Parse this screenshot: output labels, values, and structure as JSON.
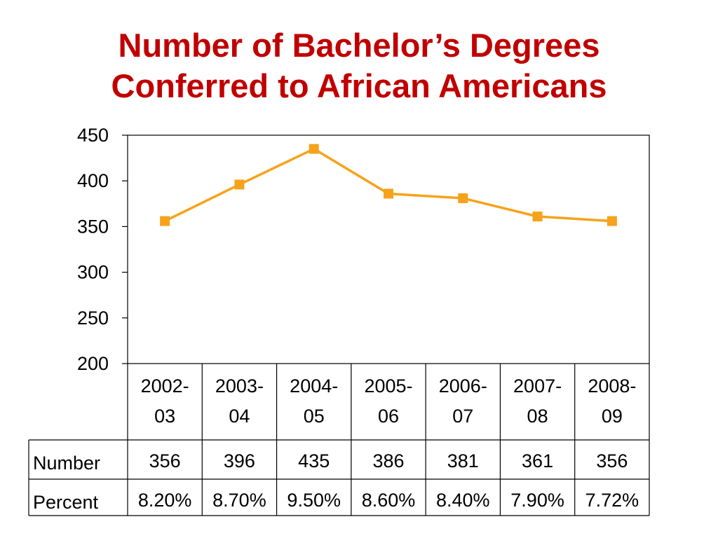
{
  "slide": {
    "title_line1": "Number of Bachelor’s Degrees",
    "title_line2": "Conferred to African Americans"
  },
  "colors": {
    "title": "#c00000",
    "series": "#f7a21b",
    "grid": "#000000"
  },
  "chart_data": {
    "type": "line",
    "title": "Number of Bachelor’s Degrees Conferred to African Americans",
    "categories": [
      [
        "2002-",
        "03"
      ],
      [
        "2003-",
        "04"
      ],
      [
        "2004-",
        "05"
      ],
      [
        "2005-",
        "06"
      ],
      [
        "2006-",
        "07"
      ],
      [
        "2007-",
        "08"
      ],
      [
        "2008-",
        "09"
      ]
    ],
    "series": [
      {
        "values": [
          356,
          396,
          435,
          386,
          381,
          361,
          356
        ],
        "marker": "square"
      }
    ],
    "yticks": [
      200,
      250,
      300,
      350,
      400,
      450
    ],
    "ylim": [
      200,
      450
    ],
    "grid": false,
    "table": {
      "rows": [
        {
          "label": "Number",
          "values": [
            "356",
            "396",
            "435",
            "386",
            "381",
            "361",
            "356"
          ]
        },
        {
          "label": "Percent",
          "values": [
            "8.20%",
            "8.70%",
            "9.50%",
            "8.60%",
            "8.40%",
            "7.90%",
            "7.72%"
          ]
        }
      ]
    }
  }
}
